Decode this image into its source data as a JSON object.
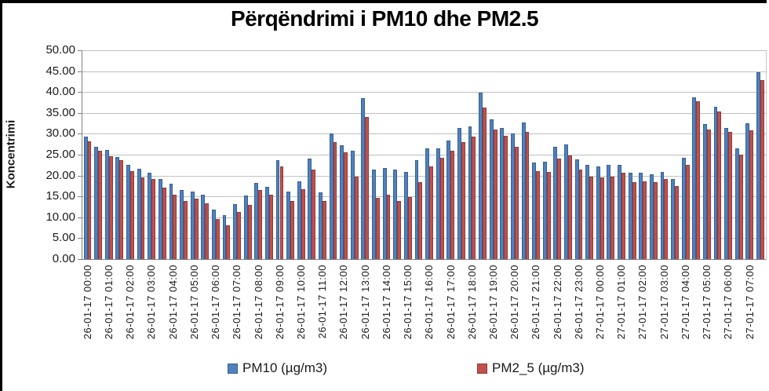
{
  "chart_data": {
    "type": "bar",
    "title": "Përqëndrimi i PM10 dhe PM2.5",
    "ylabel": "Koncentrimi",
    "xlabel": "",
    "ylim": [
      0,
      50
    ],
    "ytick_step": 5,
    "grid": true,
    "legend_position": "bottom",
    "ytick_labels": [
      "0.00",
      "5.00",
      "10.00",
      "15.00",
      "20.00",
      "25.00",
      "30.00",
      "35.00",
      "40.00",
      "45.00",
      "50.00"
    ],
    "x_labels": [
      "26-01-17 00:00",
      "26-01-17 01:00",
      "26-01-17 02:00",
      "26-01-17 03:00",
      "26-01-17 04:00",
      "26-01-17 05:00",
      "26-01-17 06:00",
      "26-01-17 07:00",
      "26-01-17 08:00",
      "26-01-17 09:00",
      "26-01-17 10:00",
      "26-01-17 11:00",
      "26-01-17 12:00",
      "26-01-17 13:00",
      "26-01-17 14:00",
      "26-01-17 15:00",
      "26-01-17 16:00",
      "26-01-17 17:00",
      "26-01-17 18:00",
      "26-01-17 19:00",
      "26-01-17 20:00",
      "26-01-17 21:00",
      "26-01-17 22:00",
      "26-01-17 23:00",
      "27-01-17 00:00",
      "27-01-17 01:00",
      "27-01-17 02:00",
      "27-01-17 03:00",
      "27-01-17 04:00",
      "27-01-17 05:00",
      "27-01-17 06:00",
      "27-01-17 07:00"
    ],
    "points_per_label": 2,
    "note": "bars are half-hourly; axis labels shown only on the hour",
    "series": [
      {
        "name": "PM10 (µg/m3)",
        "color": "#4F81BD",
        "border_color": "#38608f",
        "values": [
          29.4,
          26.9,
          26.2,
          24.5,
          22.6,
          21.6,
          20.6,
          19.1,
          18.1,
          16.5,
          16.2,
          15.4,
          11.8,
          10.5,
          13.2,
          15.2,
          18.3,
          17.3,
          23.6,
          16.2,
          18.7,
          24.0,
          16.0,
          30.0,
          27.2,
          26.0,
          38.5,
          21.4,
          21.8,
          21.4,
          20.9,
          23.7,
          26.6,
          26.6,
          28.4,
          31.4,
          31.8,
          39.9,
          33.5,
          31.4,
          30.0,
          32.7,
          23.1,
          23.4,
          26.9,
          27.4,
          23.9,
          22.5,
          22.1,
          22.5,
          22.5,
          20.6,
          20.7,
          20.3,
          20.8,
          19.1,
          24.2,
          38.8,
          32.3,
          36.5,
          31.3,
          26.5,
          32.5,
          44.8
        ]
      },
      {
        "name": "PM2_5 (µg/m3)",
        "color": "#C0504D",
        "border_color": "#8f3a38",
        "values": [
          28.2,
          25.9,
          24.7,
          23.7,
          21.1,
          19.5,
          19.1,
          17.2,
          15.4,
          14.0,
          14.4,
          13.3,
          9.6,
          8.0,
          11.2,
          13.0,
          16.5,
          15.5,
          22.1,
          14.0,
          16.7,
          21.4,
          14.0,
          28.1,
          25.5,
          19.8,
          34.0,
          14.6,
          15.5,
          14.0,
          14.9,
          18.5,
          22.1,
          24.2,
          25.9,
          28.1,
          29.4,
          36.2,
          31.1,
          29.6,
          26.9,
          30.4,
          21.0,
          20.9,
          24.0,
          24.8,
          21.4,
          19.8,
          19.6,
          19.8,
          20.6,
          18.5,
          18.6,
          18.4,
          19.1,
          17.4,
          22.6,
          37.7,
          31.1,
          35.4,
          30.4,
          25.0,
          30.9,
          42.8
        ]
      }
    ]
  }
}
